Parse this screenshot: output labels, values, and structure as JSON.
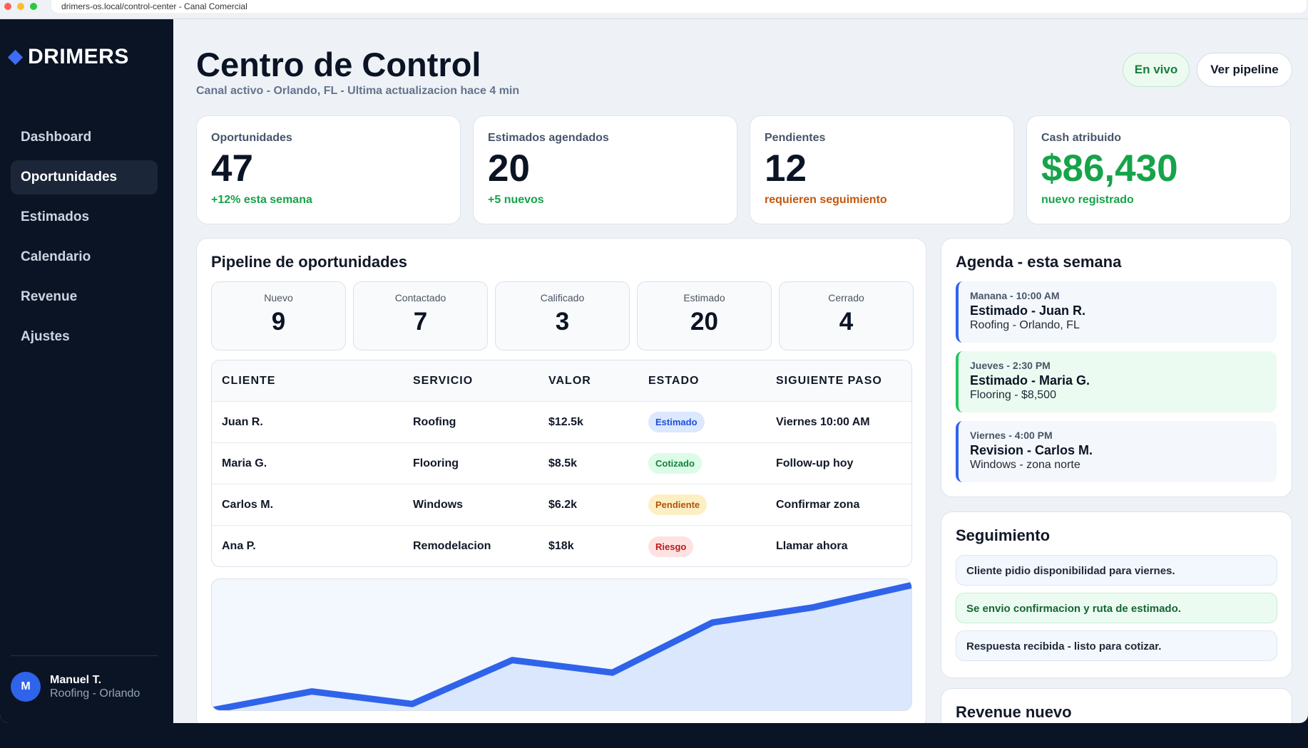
{
  "browser": {
    "url": "drimers-os.local/control-center - Canal Comercial"
  },
  "sidebar": {
    "brand": "DRIMERS",
    "items": [
      {
        "label": "Dashboard",
        "active": false
      },
      {
        "label": "Oportunidades",
        "active": true
      },
      {
        "label": "Estimados",
        "active": false
      },
      {
        "label": "Calendario",
        "active": false
      },
      {
        "label": "Revenue",
        "active": false
      },
      {
        "label": "Ajustes",
        "active": false
      }
    ],
    "user": {
      "initial": "M",
      "name": "Manuel T.",
      "role": "Roofing - Orlando"
    }
  },
  "header": {
    "title": "Centro de Control",
    "subtitle": "Canal activo - Orlando, FL - Ultima actualizacion hace 4 min",
    "live_label": "En vivo",
    "pipeline_label": "Ver pipeline"
  },
  "kpis": [
    {
      "label": "Oportunidades",
      "value": "47",
      "note": "+12% esta semana"
    },
    {
      "label": "Estimados agendados",
      "value": "20",
      "note": "+5 nuevos"
    },
    {
      "label": "Pendientes",
      "value": "12",
      "note": "requieren seguimiento"
    },
    {
      "label": "Cash atribuido",
      "value": "$86,430",
      "note": "nuevo registrado"
    }
  ],
  "pipeline": {
    "title": "Pipeline de oportunidades",
    "stages": [
      {
        "label": "Nuevo",
        "count": "9"
      },
      {
        "label": "Contactado",
        "count": "7"
      },
      {
        "label": "Calificado",
        "count": "3"
      },
      {
        "label": "Estimado",
        "count": "20"
      },
      {
        "label": "Cerrado",
        "count": "4"
      }
    ],
    "columns": [
      "CLIENTE",
      "SERVICIO",
      "VALOR",
      "ESTADO",
      "SIGUIENTE PASO"
    ],
    "rows": [
      {
        "cliente": "Juan R.",
        "servicio": "Roofing",
        "valor": "$12.5k",
        "estado": "Estimado",
        "siguiente": "Viernes 10:00 AM"
      },
      {
        "cliente": "Maria G.",
        "servicio": "Flooring",
        "valor": "$8.5k",
        "estado": "Cotizado",
        "siguiente": "Follow-up hoy"
      },
      {
        "cliente": "Carlos M.",
        "servicio": "Windows",
        "valor": "$6.2k",
        "estado": "Pendiente",
        "siguiente": "Confirmar zona"
      },
      {
        "cliente": "Ana P.",
        "servicio": "Remodelacion",
        "valor": "$18k",
        "estado": "Riesgo",
        "siguiente": "Llamar ahora"
      }
    ]
  },
  "chart_data": {
    "type": "area",
    "x": [
      0,
      1,
      2,
      3,
      4,
      5,
      6,
      7
    ],
    "values": [
      0,
      15,
      5,
      40,
      30,
      70,
      82,
      100
    ],
    "ylim": [
      0,
      100
    ],
    "color": "#2f63ea",
    "fill": "#dbe7fd"
  },
  "agenda": {
    "title": "Agenda - esta semana",
    "events": [
      {
        "time": "Manana - 10:00 AM",
        "title": "Estimado - Juan R.",
        "detail": "Roofing - Orlando, FL"
      },
      {
        "time": "Jueves - 2:30 PM",
        "title": "Estimado - Maria G.",
        "detail": "Flooring - $8,500"
      },
      {
        "time": "Viernes - 4:00 PM",
        "title": "Revision - Carlos M.",
        "detail": "Windows - zona norte"
      }
    ]
  },
  "followup": {
    "title": "Seguimiento",
    "items": [
      "Cliente pidio disponibilidad para viernes.",
      "Se envio confirmacion y ruta de estimado.",
      "Respuesta recibida - listo para cotizar."
    ]
  },
  "revenue": {
    "title": "Revenue nuevo"
  }
}
